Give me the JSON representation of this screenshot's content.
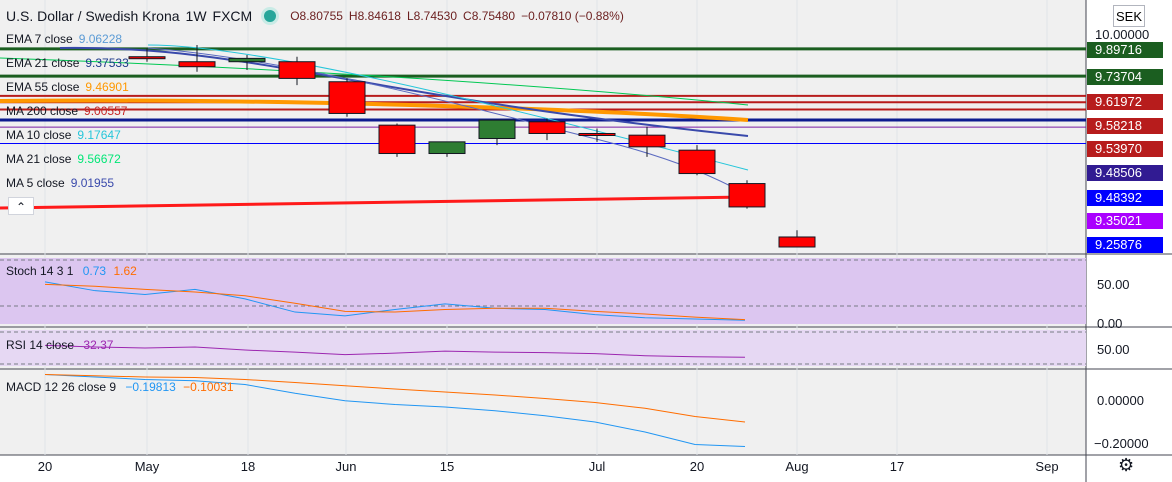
{
  "header": {
    "title": "U.S. Dollar / Swedish Krona",
    "interval": "1W",
    "exchange": "FXCM",
    "open": "O8.80755",
    "high": "H8.84618",
    "low": "L8.74530",
    "close": "C8.75480",
    "change": "−0.07810 (−0.88%)"
  },
  "currency_button": "SEK",
  "collapse_icon": "chevron-up-icon",
  "settings_icon": "gear-icon",
  "legend": [
    {
      "name": "EMA 7 close",
      "value": "9.06228",
      "color": "#5b9bd5"
    },
    {
      "name": "EMA 21 close",
      "value": "9.37533",
      "color": "#1e3a8a"
    },
    {
      "name": "EMA 55 close",
      "value": "9.46901",
      "color": "#ff9800"
    },
    {
      "name": "MA 200 close",
      "value": "9.00557",
      "color": "#c62828"
    },
    {
      "name": "MA 10 close",
      "value": "9.17647",
      "color": "#26c6da"
    },
    {
      "name": "MA 21 close",
      "value": "9.56672",
      "color": "#00e676"
    },
    {
      "name": "MA 5 close",
      "value": "9.01955",
      "color": "#3949ab"
    }
  ],
  "price_labels": [
    {
      "text": "10.00000",
      "color": "#131722"
    },
    {
      "text": "9.89716",
      "color": "#1b5e20"
    },
    {
      "text": "9.73704",
      "color": "#1b5e20"
    },
    {
      "text": "9.61972",
      "color": "#b71c1c"
    },
    {
      "text": "9.58218",
      "color": "#b71c1c"
    },
    {
      "text": "9.53970",
      "color": "#b71c1c"
    },
    {
      "text": "9.48506",
      "color": "#311b92"
    },
    {
      "text": "9.48392",
      "color": "#0000ff"
    },
    {
      "text": "9.35021",
      "color": "#aa00ff"
    },
    {
      "text": "9.25876",
      "color": "#0000ff"
    }
  ],
  "x_ticks": [
    "20",
    "May",
    "18",
    "Jun",
    "15",
    "Jul",
    "20",
    "Aug",
    "17",
    "Sep"
  ],
  "chart_data": [
    {
      "type": "candlestick",
      "title": "U.S. Dollar / Swedish Krona, 1W, FXCM",
      "candles": [
        {
          "o": 9.89,
          "h": 9.94,
          "l": 9.86,
          "c": 9.88
        },
        {
          "o": 9.86,
          "h": 9.96,
          "l": 9.8,
          "c": 9.83
        },
        {
          "o": 9.86,
          "h": 9.9,
          "l": 9.81,
          "c": 9.88
        },
        {
          "o": 9.86,
          "h": 9.89,
          "l": 9.72,
          "c": 9.76
        },
        {
          "o": 9.74,
          "h": 9.76,
          "l": 9.53,
          "c": 9.55
        },
        {
          "o": 9.48,
          "h": 9.49,
          "l": 9.29,
          "c": 9.31
        },
        {
          "o": 9.31,
          "h": 9.37,
          "l": 9.29,
          "c": 9.38
        },
        {
          "o": 9.4,
          "h": 9.51,
          "l": 9.36,
          "c": 9.51
        },
        {
          "o": 9.5,
          "h": 9.52,
          "l": 9.39,
          "c": 9.43
        },
        {
          "o": 9.43,
          "h": 9.46,
          "l": 9.38,
          "c": 9.42
        },
        {
          "o": 9.42,
          "h": 9.47,
          "l": 9.29,
          "c": 9.35
        },
        {
          "o": 9.33,
          "h": 9.36,
          "l": 9.18,
          "c": 9.19
        },
        {
          "o": 9.13,
          "h": 9.15,
          "l": 8.98,
          "c": 8.99
        },
        {
          "o": 8.81,
          "h": 8.85,
          "l": 8.75,
          "c": 8.75
        }
      ],
      "ylim": [
        8.72,
        10.05
      ]
    },
    {
      "type": "line",
      "title": "Stoch 14 3 1",
      "values_label": [
        "0.73",
        "1.62"
      ],
      "series": [
        {
          "name": "K",
          "values": [
            62,
            48,
            42,
            50,
            35,
            14,
            8,
            18,
            27,
            20,
            18,
            10,
            5,
            3,
            1
          ]
        },
        {
          "name": "D",
          "values": [
            58,
            55,
            50,
            46,
            40,
            28,
            15,
            14,
            18,
            20,
            20,
            15,
            11,
            6,
            2
          ]
        }
      ],
      "ylim": [
        -5,
        100
      ],
      "ticks": [
        "50.00",
        "0.00"
      ]
    },
    {
      "type": "line",
      "title": "RSI 14 close",
      "values_label": [
        "32.37"
      ],
      "series": [
        {
          "name": "RSI",
          "values": [
            55,
            52,
            50,
            52,
            46,
            42,
            37,
            40,
            44,
            42,
            41,
            39,
            35,
            33,
            32
          ]
        }
      ],
      "ylim": [
        15,
        85
      ],
      "ticks": [
        "50.00"
      ]
    },
    {
      "type": "line",
      "title": "MACD 12 26 close 9",
      "values_label": [
        "−0.19813",
        "−0.10031"
      ],
      "series": [
        {
          "name": "MACD",
          "values": [
            0.09,
            0.08,
            0.07,
            0.065,
            0.05,
            0.015,
            -0.015,
            -0.03,
            -0.04,
            -0.055,
            -0.075,
            -0.1,
            -0.14,
            -0.19,
            -0.198
          ]
        },
        {
          "name": "Signal",
          "values": [
            0.09,
            0.085,
            0.08,
            0.078,
            0.07,
            0.058,
            0.045,
            0.032,
            0.02,
            0.008,
            -0.006,
            -0.022,
            -0.045,
            -0.078,
            -0.1
          ]
        }
      ],
      "ylim": [
        -0.22,
        0.1
      ],
      "ticks": [
        "0.00000",
        "−0.20000"
      ]
    }
  ]
}
